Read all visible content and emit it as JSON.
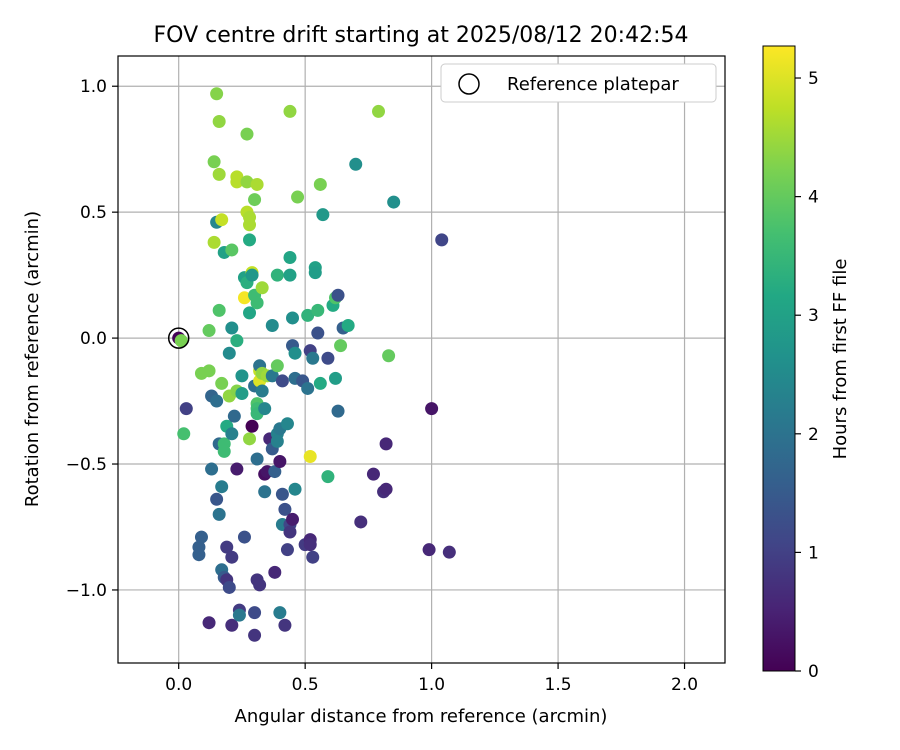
{
  "chart_data": {
    "type": "scatter",
    "title": "FOV centre drift starting at 2025/08/12 20:42:54",
    "xlabel": "Angular distance from reference (arcmin)",
    "ylabel": "Rotation from reference (arcmin)",
    "xlim": [
      -0.24,
      2.16
    ],
    "ylim": [
      -1.29,
      1.12
    ],
    "xticks": [
      0.0,
      0.5,
      1.0,
      1.5,
      2.0
    ],
    "xtick_labels": [
      "0.0",
      "0.5",
      "1.0",
      "1.5",
      "2.0"
    ],
    "yticks": [
      -1.0,
      -0.5,
      0.0,
      0.5,
      1.0
    ],
    "ytick_labels": [
      "−1.0",
      "−0.5",
      "0.0",
      "0.5",
      "1.0"
    ],
    "grid": true,
    "legend": {
      "placement": "upper right",
      "label": "Reference platepar"
    },
    "colorbar": {
      "label": "Hours from first FF file",
      "colormap": "viridis",
      "range": [
        0,
        5.27
      ],
      "ticks": [
        0,
        1,
        2,
        3,
        4,
        5
      ],
      "tick_labels": [
        "0",
        "1",
        "2",
        "3",
        "4",
        "5"
      ]
    },
    "reference_point": {
      "x": 0.0,
      "y": 0.0
    },
    "points": [
      {
        "x": 0.0,
        "y": 0.0,
        "c": 0.05
      },
      {
        "x": 0.01,
        "y": -0.01,
        "c": 4.2
      },
      {
        "x": 0.02,
        "y": -0.38,
        "c": 3.7
      },
      {
        "x": 0.03,
        "y": -0.28,
        "c": 1.0
      },
      {
        "x": 0.08,
        "y": -0.86,
        "c": 1.6
      },
      {
        "x": 0.08,
        "y": -0.83,
        "c": 1.6
      },
      {
        "x": 0.09,
        "y": -0.79,
        "c": 1.6
      },
      {
        "x": 0.09,
        "y": -0.14,
        "c": 4.2
      },
      {
        "x": 0.12,
        "y": 0.03,
        "c": 4.0
      },
      {
        "x": 0.12,
        "y": -0.13,
        "c": 4.2
      },
      {
        "x": 0.12,
        "y": -1.13,
        "c": 0.6
      },
      {
        "x": 0.13,
        "y": -0.23,
        "c": 1.7
      },
      {
        "x": 0.13,
        "y": -0.52,
        "c": 1.9
      },
      {
        "x": 0.14,
        "y": 0.7,
        "c": 4.2
      },
      {
        "x": 0.14,
        "y": 0.38,
        "c": 4.6
      },
      {
        "x": 0.15,
        "y": 0.46,
        "c": 2.4
      },
      {
        "x": 0.15,
        "y": -0.25,
        "c": 1.9
      },
      {
        "x": 0.15,
        "y": -0.64,
        "c": 1.4
      },
      {
        "x": 0.15,
        "y": 0.97,
        "c": 4.3
      },
      {
        "x": 0.16,
        "y": 0.86,
        "c": 4.4
      },
      {
        "x": 0.16,
        "y": 0.65,
        "c": 4.5
      },
      {
        "x": 0.16,
        "y": 0.11,
        "c": 3.8
      },
      {
        "x": 0.16,
        "y": -0.42,
        "c": 1.8
      },
      {
        "x": 0.16,
        "y": -0.7,
        "c": 2.0
      },
      {
        "x": 0.17,
        "y": 0.47,
        "c": 4.8
      },
      {
        "x": 0.17,
        "y": -0.59,
        "c": 2.2
      },
      {
        "x": 0.17,
        "y": -0.92,
        "c": 1.9
      },
      {
        "x": 0.17,
        "y": -0.18,
        "c": 4.2
      },
      {
        "x": 0.18,
        "y": 0.34,
        "c": 3.0
      },
      {
        "x": 0.18,
        "y": -0.42,
        "c": 3.6
      },
      {
        "x": 0.18,
        "y": -0.45,
        "c": 3.6
      },
      {
        "x": 0.18,
        "y": -0.95,
        "c": 1.5
      },
      {
        "x": 0.19,
        "y": -0.35,
        "c": 3.2
      },
      {
        "x": 0.19,
        "y": -0.83,
        "c": 0.9
      },
      {
        "x": 0.19,
        "y": -0.96,
        "c": 0.8
      },
      {
        "x": 0.2,
        "y": -0.06,
        "c": 2.5
      },
      {
        "x": 0.2,
        "y": -0.99,
        "c": 1.2
      },
      {
        "x": 0.2,
        "y": -0.23,
        "c": 4.4
      },
      {
        "x": 0.21,
        "y": 0.35,
        "c": 3.9
      },
      {
        "x": 0.21,
        "y": 0.04,
        "c": 2.6
      },
      {
        "x": 0.21,
        "y": -0.38,
        "c": 2.3
      },
      {
        "x": 0.21,
        "y": -0.87,
        "c": 0.9
      },
      {
        "x": 0.21,
        "y": -1.14,
        "c": 0.7
      },
      {
        "x": 0.22,
        "y": -0.31,
        "c": 1.8
      },
      {
        "x": 0.23,
        "y": -0.01,
        "c": 3.3
      },
      {
        "x": 0.23,
        "y": 0.64,
        "c": 4.7
      },
      {
        "x": 0.23,
        "y": 0.62,
        "c": 4.7
      },
      {
        "x": 0.23,
        "y": -0.21,
        "c": 4.3
      },
      {
        "x": 0.23,
        "y": -0.52,
        "c": 0.4
      },
      {
        "x": 0.24,
        "y": -1.08,
        "c": 0.9
      },
      {
        "x": 0.24,
        "y": -1.1,
        "c": 2.1
      },
      {
        "x": 0.25,
        "y": -0.15,
        "c": 2.7
      },
      {
        "x": 0.25,
        "y": -0.22,
        "c": 2.9
      },
      {
        "x": 0.26,
        "y": 0.16,
        "c": 5.2
      },
      {
        "x": 0.26,
        "y": 0.24,
        "c": 3.0
      },
      {
        "x": 0.26,
        "y": -0.79,
        "c": 1.3
      },
      {
        "x": 0.27,
        "y": 0.62,
        "c": 4.4
      },
      {
        "x": 0.27,
        "y": 0.5,
        "c": 4.7
      },
      {
        "x": 0.27,
        "y": 0.22,
        "c": 3.3
      },
      {
        "x": 0.27,
        "y": 0.81,
        "c": 4.2
      },
      {
        "x": 0.28,
        "y": 0.39,
        "c": 3.2
      },
      {
        "x": 0.28,
        "y": 0.45,
        "c": 4.6
      },
      {
        "x": 0.28,
        "y": 0.48,
        "c": 4.6
      },
      {
        "x": 0.28,
        "y": 0.1,
        "c": 3.1
      },
      {
        "x": 0.28,
        "y": -0.4,
        "c": 4.4
      },
      {
        "x": 0.29,
        "y": 0.26,
        "c": 4.8
      },
      {
        "x": 0.29,
        "y": 0.25,
        "c": 2.8
      },
      {
        "x": 0.29,
        "y": -0.35,
        "c": 0.0
      },
      {
        "x": 0.3,
        "y": 0.55,
        "c": 4.1
      },
      {
        "x": 0.3,
        "y": 0.17,
        "c": 3.6
      },
      {
        "x": 0.3,
        "y": -0.19,
        "c": 1.9
      },
      {
        "x": 0.3,
        "y": -1.09,
        "c": 1.2
      },
      {
        "x": 0.3,
        "y": -1.18,
        "c": 0.8
      },
      {
        "x": 0.31,
        "y": 0.61,
        "c": 4.6
      },
      {
        "x": 0.31,
        "y": 0.14,
        "c": 3.6
      },
      {
        "x": 0.31,
        "y": -0.48,
        "c": 1.9
      },
      {
        "x": 0.31,
        "y": -0.96,
        "c": 0.8
      },
      {
        "x": 0.31,
        "y": -0.26,
        "c": 3.8
      },
      {
        "x": 0.31,
        "y": -0.28,
        "c": 3.6
      },
      {
        "x": 0.31,
        "y": -0.3,
        "c": 3.5
      },
      {
        "x": 0.32,
        "y": -0.17,
        "c": 5.0
      },
      {
        "x": 0.32,
        "y": -0.13,
        "c": 4.8
      },
      {
        "x": 0.32,
        "y": -0.11,
        "c": 2.0
      },
      {
        "x": 0.32,
        "y": -0.98,
        "c": 0.8
      },
      {
        "x": 0.33,
        "y": 0.2,
        "c": 4.5
      },
      {
        "x": 0.33,
        "y": -0.14,
        "c": 4.4
      },
      {
        "x": 0.33,
        "y": -0.21,
        "c": 2.2
      },
      {
        "x": 0.34,
        "y": -0.28,
        "c": 2.4
      },
      {
        "x": 0.34,
        "y": -0.61,
        "c": 2.0
      },
      {
        "x": 0.34,
        "y": -0.54,
        "c": 0.2
      },
      {
        "x": 0.35,
        "y": -0.15,
        "c": 4.5
      },
      {
        "x": 0.35,
        "y": -0.53,
        "c": 0.3
      },
      {
        "x": 0.36,
        "y": -0.4,
        "c": 0.6
      },
      {
        "x": 0.37,
        "y": 0.05,
        "c": 2.5
      },
      {
        "x": 0.37,
        "y": -0.15,
        "c": 2.1
      },
      {
        "x": 0.37,
        "y": -0.44,
        "c": 1.5
      },
      {
        "x": 0.38,
        "y": -0.93,
        "c": 0.6
      },
      {
        "x": 0.38,
        "y": -0.53,
        "c": 1.6
      },
      {
        "x": 0.39,
        "y": 0.25,
        "c": 3.4
      },
      {
        "x": 0.39,
        "y": -0.11,
        "c": 4.0
      },
      {
        "x": 0.39,
        "y": -0.38,
        "c": 2.3
      },
      {
        "x": 0.39,
        "y": -0.41,
        "c": 2.3
      },
      {
        "x": 0.4,
        "y": -0.36,
        "c": 2.1
      },
      {
        "x": 0.4,
        "y": -1.09,
        "c": 2.2
      },
      {
        "x": 0.4,
        "y": -0.49,
        "c": 0.3
      },
      {
        "x": 0.41,
        "y": -0.17,
        "c": 1.2
      },
      {
        "x": 0.41,
        "y": -0.62,
        "c": 1.4
      },
      {
        "x": 0.41,
        "y": -0.74,
        "c": 2.2
      },
      {
        "x": 0.42,
        "y": -1.14,
        "c": 0.8
      },
      {
        "x": 0.42,
        "y": -0.68,
        "c": 1.3
      },
      {
        "x": 0.43,
        "y": -0.34,
        "c": 2.4
      },
      {
        "x": 0.43,
        "y": -0.84,
        "c": 1.0
      },
      {
        "x": 0.44,
        "y": 0.9,
        "c": 4.4
      },
      {
        "x": 0.44,
        "y": 0.32,
        "c": 3.1
      },
      {
        "x": 0.44,
        "y": 0.25,
        "c": 3.0
      },
      {
        "x": 0.44,
        "y": -0.74,
        "c": 1.1
      },
      {
        "x": 0.44,
        "y": -0.77,
        "c": 0.8
      },
      {
        "x": 0.45,
        "y": 0.08,
        "c": 2.6
      },
      {
        "x": 0.45,
        "y": -0.03,
        "c": 1.5
      },
      {
        "x": 0.45,
        "y": -0.72,
        "c": 0.4
      },
      {
        "x": 0.46,
        "y": -0.06,
        "c": 2.6
      },
      {
        "x": 0.46,
        "y": -0.16,
        "c": 1.9
      },
      {
        "x": 0.46,
        "y": -0.6,
        "c": 2.4
      },
      {
        "x": 0.47,
        "y": 0.56,
        "c": 4.2
      },
      {
        "x": 0.49,
        "y": -0.17,
        "c": 1.4
      },
      {
        "x": 0.5,
        "y": -0.82,
        "c": 0.9
      },
      {
        "x": 0.51,
        "y": 0.09,
        "c": 3.4
      },
      {
        "x": 0.51,
        "y": -0.2,
        "c": 2.0
      },
      {
        "x": 0.52,
        "y": -0.47,
        "c": 5.1
      },
      {
        "x": 0.52,
        "y": -0.05,
        "c": 1.0
      },
      {
        "x": 0.52,
        "y": -0.8,
        "c": 0.6
      },
      {
        "x": 0.52,
        "y": -0.82,
        "c": 0.7
      },
      {
        "x": 0.53,
        "y": -0.08,
        "c": 2.1
      },
      {
        "x": 0.53,
        "y": -0.87,
        "c": 1.0
      },
      {
        "x": 0.54,
        "y": 0.28,
        "c": 3.0
      },
      {
        "x": 0.54,
        "y": 0.26,
        "c": 2.9
      },
      {
        "x": 0.55,
        "y": 0.02,
        "c": 1.3
      },
      {
        "x": 0.55,
        "y": 0.11,
        "c": 3.5
      },
      {
        "x": 0.56,
        "y": 0.61,
        "c": 4.2
      },
      {
        "x": 0.56,
        "y": -0.18,
        "c": 3.2
      },
      {
        "x": 0.57,
        "y": 0.49,
        "c": 2.8
      },
      {
        "x": 0.59,
        "y": -0.55,
        "c": 3.4
      },
      {
        "x": 0.59,
        "y": -0.08,
        "c": 1.2
      },
      {
        "x": 0.61,
        "y": 0.13,
        "c": 3.2
      },
      {
        "x": 0.62,
        "y": -0.16,
        "c": 2.9
      },
      {
        "x": 0.62,
        "y": 0.16,
        "c": 3.8
      },
      {
        "x": 0.63,
        "y": 0.17,
        "c": 1.3
      },
      {
        "x": 0.63,
        "y": -0.29,
        "c": 1.8
      },
      {
        "x": 0.64,
        "y": -0.03,
        "c": 4.0
      },
      {
        "x": 0.65,
        "y": 0.04,
        "c": 1.6
      },
      {
        "x": 0.67,
        "y": 0.05,
        "c": 3.2
      },
      {
        "x": 0.7,
        "y": 0.69,
        "c": 2.6
      },
      {
        "x": 0.72,
        "y": -0.73,
        "c": 0.7
      },
      {
        "x": 0.77,
        "y": -0.54,
        "c": 0.6
      },
      {
        "x": 0.79,
        "y": 0.9,
        "c": 4.4
      },
      {
        "x": 0.81,
        "y": -0.61,
        "c": 0.7
      },
      {
        "x": 0.82,
        "y": -0.6,
        "c": 0.6
      },
      {
        "x": 0.82,
        "y": -0.42,
        "c": 0.6
      },
      {
        "x": 0.83,
        "y": -0.07,
        "c": 4.0
      },
      {
        "x": 0.85,
        "y": 0.54,
        "c": 2.6
      },
      {
        "x": 0.99,
        "y": -0.84,
        "c": 0.6
      },
      {
        "x": 1.0,
        "y": -0.28,
        "c": 0.3
      },
      {
        "x": 1.04,
        "y": 0.39,
        "c": 1.1
      },
      {
        "x": 1.07,
        "y": -0.85,
        "c": 0.7
      }
    ]
  }
}
